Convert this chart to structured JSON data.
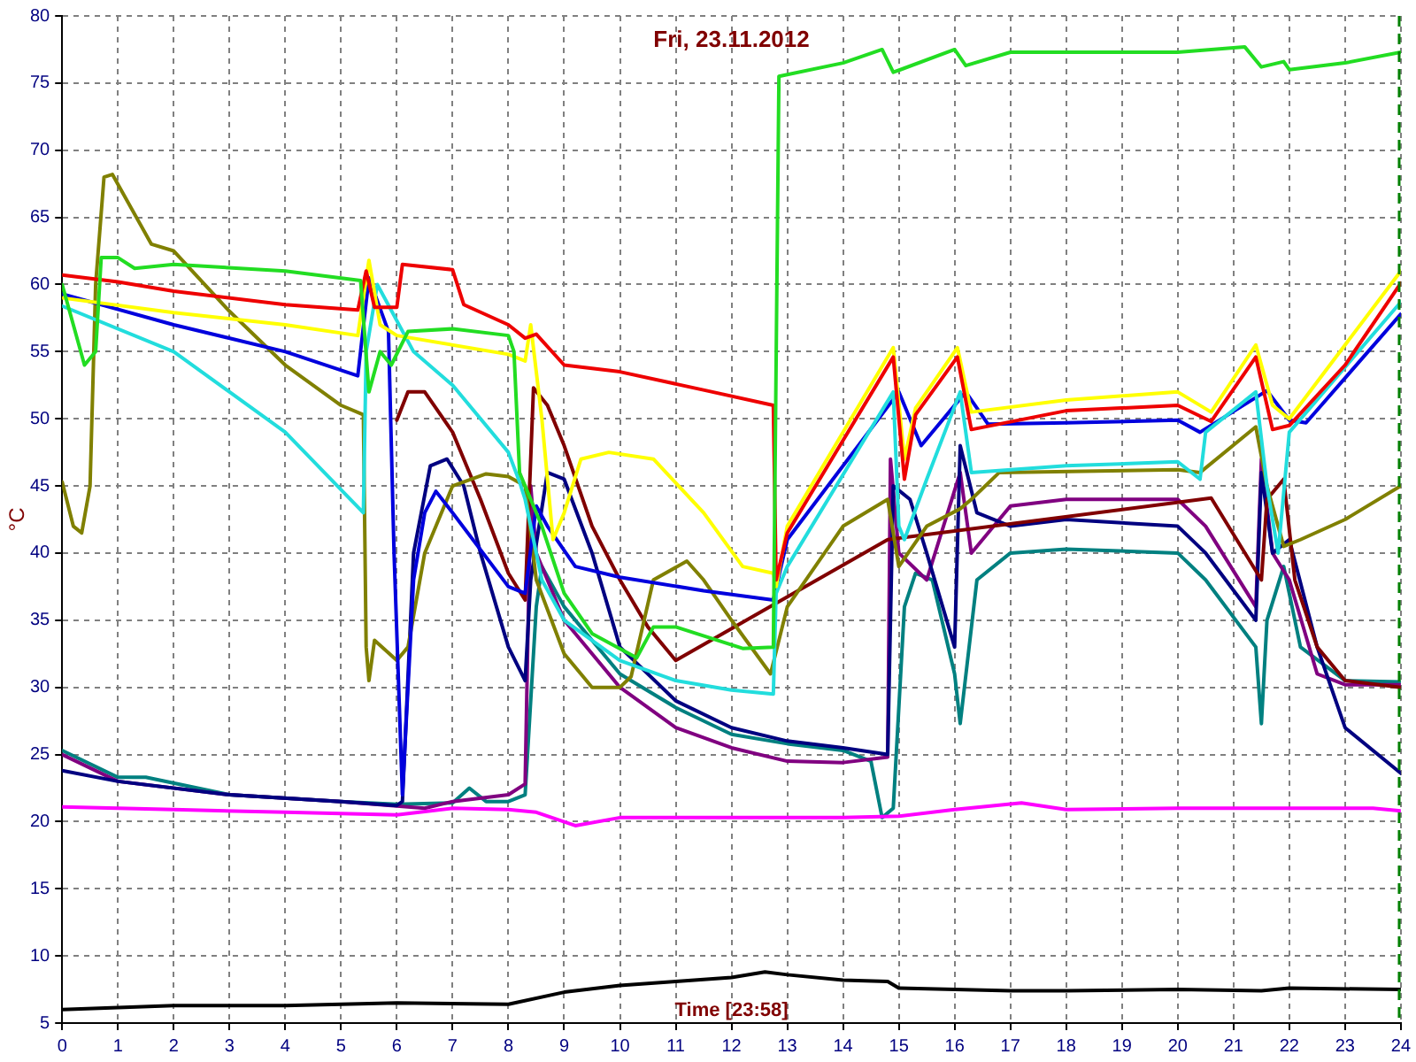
{
  "chart_data": {
    "type": "line",
    "title": "Fri, 23.11.2012",
    "ylabel": "°C",
    "xlabel": "Time [23:58]",
    "xlim": [
      0,
      24
    ],
    "xticks": [
      0,
      1,
      2,
      3,
      4,
      5,
      6,
      7,
      8,
      9,
      10,
      11,
      12,
      13,
      14,
      15,
      16,
      17,
      18,
      19,
      20,
      21,
      22,
      23,
      24
    ],
    "ylim": [
      5,
      80
    ],
    "yticks": [
      5,
      10,
      15,
      20,
      25,
      30,
      35,
      40,
      45,
      50,
      55,
      60,
      65,
      70,
      75,
      80
    ],
    "grid": true,
    "legend": false,
    "marker": "none",
    "ref_lines": [
      {
        "axis": "x",
        "value": 23.97,
        "color": "#008000",
        "line_style": "dashed"
      }
    ],
    "series": [
      {
        "color": "#000000",
        "x": [
          0,
          2,
          4,
          6,
          8,
          9,
          10,
          11,
          12,
          12.6,
          13,
          14,
          14.8,
          15,
          17,
          18,
          20,
          21.5,
          22,
          24
        ],
        "values": [
          6,
          6.3,
          6.3,
          6.5,
          6.4,
          7.3,
          7.8,
          8.1,
          8.4,
          8.8,
          8.6,
          8.2,
          8.1,
          7.6,
          7.4,
          7.4,
          7.5,
          7.4,
          7.6,
          7.5
        ]
      },
      {
        "color": "#ff00ff",
        "x": [
          0,
          2,
          4,
          6,
          7,
          8,
          8.5,
          9.2,
          10,
          12,
          14,
          15,
          16,
          17.2,
          18,
          20,
          22,
          23.5,
          24
        ],
        "values": [
          21.1,
          20.9,
          20.7,
          20.5,
          21,
          20.9,
          20.7,
          19.7,
          20.3,
          20.3,
          20.3,
          20.4,
          20.9,
          21.4,
          20.9,
          21,
          21,
          21,
          20.8
        ]
      },
      {
        "color": "#22dd22",
        "x": [
          0,
          0.4,
          0.6,
          0.7,
          1,
          1.3,
          2,
          4,
          5.35,
          5.5,
          5.7,
          5.9,
          6.2,
          7,
          8,
          8.1,
          8.2,
          8.6,
          9,
          9.5,
          10.3,
          10.6,
          11,
          12.2,
          12.75,
          12.85,
          14,
          14.7,
          14.9,
          16,
          16.2,
          17,
          20,
          21.2,
          21.5,
          21.9,
          22,
          23,
          24
        ],
        "values": [
          60,
          54,
          55,
          62,
          62,
          61.2,
          61.5,
          61,
          60.3,
          52,
          55,
          54,
          56.5,
          56.7,
          56.2,
          55,
          46,
          42,
          37,
          34,
          32.2,
          34.5,
          34.5,
          32.9,
          33,
          75.5,
          76.5,
          77.5,
          75.8,
          77.5,
          76.3,
          77.3,
          77.3,
          77.7,
          76.2,
          76.6,
          76,
          76.5,
          77.3
        ]
      },
      {
        "color": "#ee0000",
        "x": [
          0,
          1,
          2,
          4,
          5.3,
          5.45,
          5.6,
          6,
          6.1,
          7,
          7.2,
          8,
          8.3,
          8.5,
          9,
          10,
          11.55,
          12.75,
          12.8,
          13,
          14.9,
          15.1,
          15.3,
          16.05,
          16.3,
          18,
          20,
          20.6,
          21.4,
          21.7,
          22,
          23,
          24
        ],
        "values": [
          60.7,
          60.2,
          59.5,
          58.5,
          58.1,
          61,
          58.3,
          58.3,
          61.5,
          61.1,
          58.5,
          57,
          56,
          56.3,
          54,
          53.5,
          52.1,
          51,
          38,
          41.5,
          54.6,
          45.5,
          50.3,
          54.6,
          49.2,
          50.6,
          51,
          49.8,
          54.6,
          49.2,
          49.5,
          54,
          60.1
        ]
      },
      {
        "color": "#ffff00",
        "x": [
          0,
          2,
          4,
          5.3,
          5.5,
          5.7,
          6,
          8,
          8.3,
          8.4,
          8.6,
          8.8,
          9,
          9.3,
          9.8,
          10.6,
          11.5,
          12.2,
          12.75,
          12.8,
          13,
          14.9,
          15.1,
          15.3,
          16.05,
          16.3,
          18,
          20,
          20.6,
          21.4,
          21.7,
          22,
          24
        ],
        "values": [
          59,
          57.9,
          57,
          56.2,
          61.8,
          57,
          56.2,
          54.8,
          54.3,
          57,
          50,
          41,
          43,
          47,
          47.5,
          47,
          43,
          39,
          38.5,
          37.5,
          42,
          55.3,
          47,
          50.8,
          55.3,
          50.5,
          51.4,
          52,
          50.5,
          55.5,
          51,
          50,
          61
        ]
      },
      {
        "color": "#22dddd",
        "x": [
          0,
          2,
          4,
          5.4,
          5.45,
          5.65,
          6.3,
          7,
          8,
          8.2,
          8.3,
          8.6,
          9,
          10,
          11,
          12,
          12.75,
          12.8,
          13,
          14.9,
          15,
          15.1,
          15.5,
          16.1,
          16.3,
          18,
          20,
          20.4,
          20.5,
          21.4,
          21.6,
          21.8,
          22,
          24
        ],
        "values": [
          58.4,
          55,
          49,
          43,
          55,
          60,
          55,
          52.5,
          47.5,
          45.3,
          44,
          38,
          35,
          32,
          30.5,
          29.8,
          29.5,
          37,
          39,
          52,
          42,
          41,
          45.5,
          52,
          46,
          46.5,
          46.8,
          45.5,
          49,
          52,
          45,
          40,
          49,
          58.7
        ]
      },
      {
        "color": "#0000dd",
        "x": [
          0,
          2,
          4,
          5.3,
          5.5,
          5.85,
          5.95,
          6.1,
          6.3,
          6.5,
          6.7,
          7,
          8,
          8.3,
          8.5,
          8.7,
          9.2,
          10,
          11.5,
          12.75,
          13,
          15,
          15.4,
          16.2,
          16.6,
          18,
          20,
          20.4,
          21.6,
          22,
          22.3,
          24
        ],
        "values": [
          59.3,
          57,
          55,
          53.2,
          60.5,
          56.5,
          40,
          22,
          38,
          43,
          44.6,
          43,
          37.5,
          37,
          43.5,
          42,
          39,
          38.2,
          37.2,
          36.5,
          41,
          52,
          48,
          52,
          49.6,
          49.7,
          49.9,
          49,
          52.1,
          49.9,
          49.7,
          57.8
        ]
      },
      {
        "color": "#808000",
        "x": [
          0,
          0.2,
          0.35,
          0.5,
          0.6,
          0.75,
          0.9,
          1.6,
          2,
          3,
          4,
          5,
          5.4,
          5.45,
          5.5,
          5.6,
          6,
          6.2,
          6.5,
          7,
          7.6,
          8,
          8.3,
          8.5,
          9,
          9.5,
          10,
          10.2,
          10.6,
          11.2,
          11.5,
          12,
          12.7,
          13,
          14,
          14.8,
          15,
          15.5,
          16.1,
          16.3,
          16.8,
          20,
          20.4,
          21.4,
          21.6,
          21.9,
          22.2,
          23,
          24
        ],
        "values": [
          45.3,
          42,
          41.5,
          45,
          60,
          68,
          68.2,
          63,
          62.5,
          58,
          54,
          51,
          50.3,
          33,
          30.5,
          33.5,
          32,
          33,
          40,
          45,
          45.9,
          45.7,
          45,
          38,
          32.5,
          30,
          30,
          30.8,
          38,
          39.4,
          38,
          35,
          31,
          36,
          42,
          44,
          39,
          42,
          43.3,
          44,
          46,
          46.2,
          46,
          49.4,
          45,
          40.5,
          41,
          42.5,
          45
        ]
      },
      {
        "color": "#800000",
        "x": [
          6,
          6.2,
          6.5,
          7,
          7.5,
          8,
          8.3,
          8.45,
          8.7,
          9,
          9.5,
          10,
          10.5,
          11,
          14.8,
          20.6,
          21.5,
          21.6,
          21.9,
          22.1,
          22.5,
          23,
          24
        ],
        "values": [
          49.9,
          52,
          52,
          49,
          44,
          38.5,
          36.5,
          52.3,
          51,
          48,
          42,
          38,
          34.5,
          32,
          41,
          44.1,
          38,
          44,
          45.5,
          38,
          33,
          30.5,
          30
        ]
      },
      {
        "color": "#000080",
        "x": [
          0,
          1,
          3,
          5,
          6,
          6.1,
          6.3,
          6.6,
          6.9,
          7.2,
          7.5,
          8,
          8.3,
          8.4,
          8.7,
          9,
          9.5,
          10,
          11,
          12,
          13,
          14,
          14.8,
          14.9,
          15.2,
          15.5,
          16,
          16.1,
          16.4,
          17,
          18,
          20,
          20.5,
          21.4,
          21.5,
          21.7,
          22,
          22.5,
          23,
          24
        ],
        "values": [
          23.8,
          23,
          22,
          21.5,
          21.2,
          21.5,
          40,
          46.5,
          47,
          45,
          40,
          33,
          30.5,
          38,
          46,
          45.5,
          40,
          33,
          29,
          27,
          26,
          25.5,
          25,
          45,
          44,
          40,
          33,
          48,
          43,
          42,
          42.5,
          42,
          40,
          35,
          46,
          40,
          41,
          33,
          27,
          23.6
        ]
      },
      {
        "color": "#800080",
        "x": [
          0,
          1,
          3,
          5,
          6.5,
          7,
          8,
          8.3,
          8.4,
          8.5,
          9,
          10,
          11,
          12,
          13,
          14,
          14.8,
          14.85,
          15,
          15.5,
          16.1,
          16.3,
          17,
          18,
          20,
          20.5,
          21.4,
          21.5,
          21.7,
          22,
          22.5,
          23,
          24
        ],
        "values": [
          25,
          23,
          22,
          21.5,
          21,
          21.5,
          22,
          22.8,
          45,
          40,
          35,
          30,
          27,
          25.5,
          24.5,
          24.4,
          24.8,
          47,
          40,
          38,
          46,
          40,
          43.5,
          44,
          44,
          42,
          36,
          47,
          40,
          38,
          31,
          30.2,
          30.2
        ]
      },
      {
        "color": "#008080",
        "x": [
          0,
          1,
          1.5,
          3,
          5,
          6,
          7,
          7.3,
          7.6,
          8,
          8.3,
          8.5,
          8.6,
          9,
          10,
          11,
          12,
          13,
          14,
          14.5,
          14.7,
          14.9,
          15.1,
          15.3,
          15.6,
          16,
          16.1,
          16.4,
          17,
          18,
          20,
          20.5,
          21.4,
          21.5,
          21.6,
          21.9,
          22.2,
          23,
          24
        ],
        "values": [
          25.3,
          23.3,
          23.3,
          22,
          21.5,
          21.3,
          21.4,
          22.5,
          21.5,
          21.5,
          22,
          36,
          39,
          36,
          31,
          28.5,
          26.5,
          25.8,
          25.3,
          24.5,
          20.3,
          21,
          36,
          38.5,
          38,
          31,
          27.3,
          38,
          40,
          40.3,
          40,
          38,
          33,
          27.3,
          35,
          39,
          33,
          30.5,
          30.4
        ]
      }
    ]
  }
}
